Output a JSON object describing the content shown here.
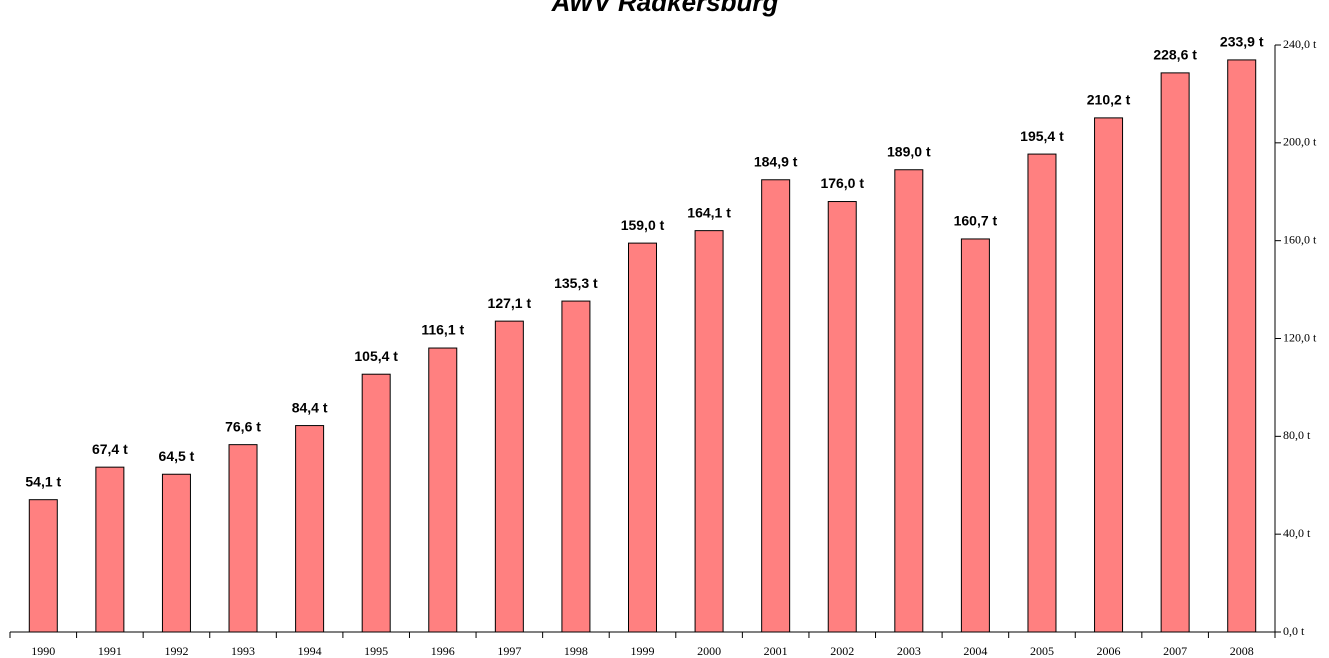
{
  "chart_data": {
    "type": "bar",
    "title": "AWV Radkersburg",
    "categories": [
      "1990",
      "1991",
      "1992",
      "1993",
      "1994",
      "1995",
      "1996",
      "1997",
      "1998",
      "1999",
      "2000",
      "2001",
      "2002",
      "2003",
      "2004",
      "2005",
      "2006",
      "2007",
      "2008"
    ],
    "values": [
      54.1,
      67.4,
      64.5,
      76.6,
      84.4,
      105.4,
      116.1,
      127.1,
      135.3,
      159.0,
      164.1,
      184.9,
      176.0,
      189.0,
      160.7,
      195.4,
      210.2,
      228.6,
      233.9
    ],
    "value_labels": [
      "54,1 t",
      "67,4 t",
      "64,5 t",
      "76,6 t",
      "84,4 t",
      "105,4 t",
      "116,1 t",
      "127,1 t",
      "135,3 t",
      "159,0 t",
      "164,1 t",
      "184,9 t",
      "176,0 t",
      "189,0 t",
      "160,7 t",
      "195,4 t",
      "210,2 t",
      "228,6 t",
      "233,9 t"
    ],
    "color": "#ff8080",
    "ylim": [
      0,
      240
    ],
    "yticks": [
      {
        "value": 0,
        "label": "0,0 t"
      },
      {
        "value": 40,
        "label": "40,0 t"
      },
      {
        "value": 80,
        "label": "80,0 t"
      },
      {
        "value": 120,
        "label": "120,0 t"
      },
      {
        "value": 160,
        "label": "160,0 t"
      },
      {
        "value": 200,
        "label": "200,0 t"
      },
      {
        "value": 240,
        "label": "240,0 t"
      }
    ],
    "grid": false
  }
}
